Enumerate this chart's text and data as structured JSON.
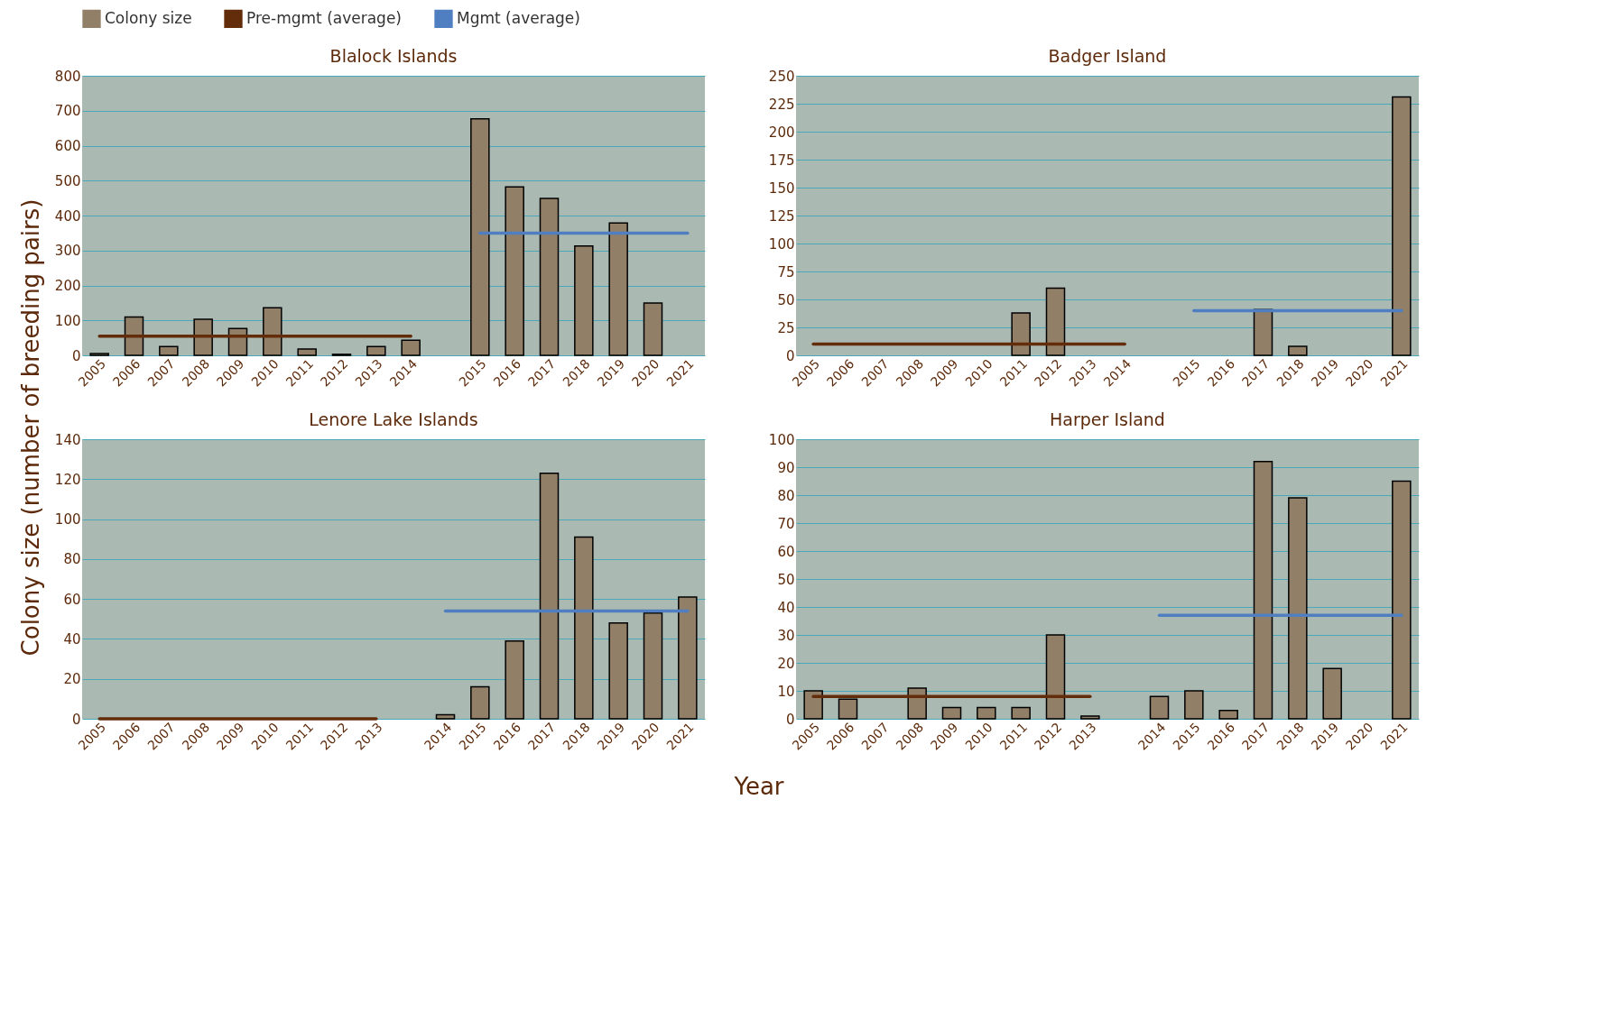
{
  "chart_data": [
    {
      "type": "bar",
      "title": "Blalock Islands",
      "ylabel": "Colony size (number of breeding pairs)",
      "xlabel": "Year",
      "legend": "top",
      "grid": "y",
      "categories": [
        "2005",
        "2006",
        "2007",
        "2008",
        "2009",
        "2010",
        "2011",
        "2012",
        "2013",
        "2014",
        null,
        "2015",
        "2016",
        "2017",
        "2018",
        "2019",
        "2020",
        "2021"
      ],
      "ylim": [
        0,
        800
      ],
      "yticks": [
        0,
        100,
        200,
        300,
        400,
        500,
        600,
        700,
        800
      ],
      "series": [
        {
          "name": "Colony size",
          "type": "bar",
          "color": "#917f67",
          "values": [
            5,
            110,
            25,
            103,
            77,
            136,
            18,
            3,
            25,
            43,
            null,
            677,
            482,
            449,
            313,
            379,
            150,
            null
          ]
        },
        {
          "name": "Pre-mgmt (average)",
          "type": "line",
          "color": "#632c0a",
          "values": [
            55,
            55,
            55,
            55,
            55,
            55,
            55,
            55,
            55,
            55,
            null,
            null,
            null,
            null,
            null,
            null,
            null,
            null
          ]
        },
        {
          "name": "Mgmt (average)",
          "type": "line",
          "color": "#4f7fc0",
          "values": [
            null,
            null,
            null,
            null,
            null,
            null,
            null,
            null,
            null,
            null,
            null,
            350,
            350,
            350,
            350,
            350,
            350,
            350
          ]
        }
      ]
    },
    {
      "type": "bar",
      "title": "Badger Island",
      "grid": "y",
      "categories": [
        "2005",
        "2006",
        "2007",
        "2008",
        "2009",
        "2010",
        "2011",
        "2012",
        "2013",
        "2014",
        null,
        "2015",
        "2016",
        "2017",
        "2018",
        "2019",
        "2020",
        "2021"
      ],
      "ylim": [
        0,
        250
      ],
      "yticks": [
        0,
        25,
        50,
        75,
        100,
        125,
        150,
        175,
        200,
        225,
        250
      ],
      "series": [
        {
          "type": "bar",
          "color": "#917f67",
          "values": [
            null,
            null,
            null,
            null,
            null,
            null,
            38,
            60,
            null,
            null,
            null,
            null,
            null,
            41,
            8,
            null,
            null,
            231
          ]
        },
        {
          "type": "line",
          "color": "#632c0a",
          "values": [
            10,
            10,
            10,
            10,
            10,
            10,
            10,
            10,
            10,
            10,
            null,
            null,
            null,
            null,
            null,
            null,
            null,
            null
          ]
        },
        {
          "type": "line",
          "color": "#4f7fc0",
          "values": [
            null,
            null,
            null,
            null,
            null,
            null,
            null,
            null,
            null,
            null,
            null,
            40,
            40,
            40,
            40,
            40,
            40,
            40
          ]
        }
      ]
    },
    {
      "type": "bar",
      "title": "Lenore Lake Islands",
      "grid": "y",
      "categories": [
        "2005",
        "2006",
        "2007",
        "2008",
        "2009",
        "2010",
        "2011",
        "2012",
        "2013",
        null,
        "2014",
        "2015",
        "2016",
        "2017",
        "2018",
        "2019",
        "2020",
        "2021"
      ],
      "ylim": [
        0,
        140
      ],
      "yticks": [
        0,
        20,
        40,
        60,
        80,
        100,
        120,
        140
      ],
      "series": [
        {
          "type": "bar",
          "color": "#917f67",
          "values": [
            null,
            null,
            null,
            null,
            null,
            null,
            null,
            null,
            null,
            null,
            2,
            16,
            39,
            123,
            91,
            48,
            53,
            61
          ]
        },
        {
          "type": "line",
          "color": "#632c0a",
          "values": [
            0,
            0,
            0,
            0,
            0,
            0,
            0,
            0,
            0,
            null,
            null,
            null,
            null,
            null,
            null,
            null,
            null,
            null
          ]
        },
        {
          "type": "line",
          "color": "#4f7fc0",
          "values": [
            null,
            null,
            null,
            null,
            null,
            null,
            null,
            null,
            null,
            null,
            54,
            54,
            54,
            54,
            54,
            54,
            54,
            54
          ]
        }
      ]
    },
    {
      "type": "bar",
      "title": "Harper Island",
      "grid": "y",
      "categories": [
        "2005",
        "2006",
        "2007",
        "2008",
        "2009",
        "2010",
        "2011",
        "2012",
        "2013",
        null,
        "2014",
        "2015",
        "2016",
        "2017",
        "2018",
        "2019",
        "2020",
        "2021"
      ],
      "ylim": [
        0,
        100
      ],
      "yticks": [
        0,
        10,
        20,
        30,
        40,
        50,
        60,
        70,
        80,
        90,
        100
      ],
      "series": [
        {
          "type": "bar",
          "color": "#917f67",
          "values": [
            10,
            7,
            null,
            11,
            4,
            4,
            4,
            30,
            1,
            null,
            8,
            10,
            3,
            92,
            79,
            18,
            null,
            85
          ]
        },
        {
          "type": "line",
          "color": "#632c0a",
          "values": [
            8,
            8,
            8,
            8,
            8,
            8,
            8,
            8,
            8,
            null,
            null,
            null,
            null,
            null,
            null,
            null,
            null,
            null
          ]
        },
        {
          "type": "line",
          "color": "#4f7fc0",
          "values": [
            null,
            null,
            null,
            null,
            null,
            null,
            null,
            null,
            null,
            null,
            37,
            37,
            37,
            37,
            37,
            37,
            37,
            37
          ]
        }
      ]
    }
  ]
}
